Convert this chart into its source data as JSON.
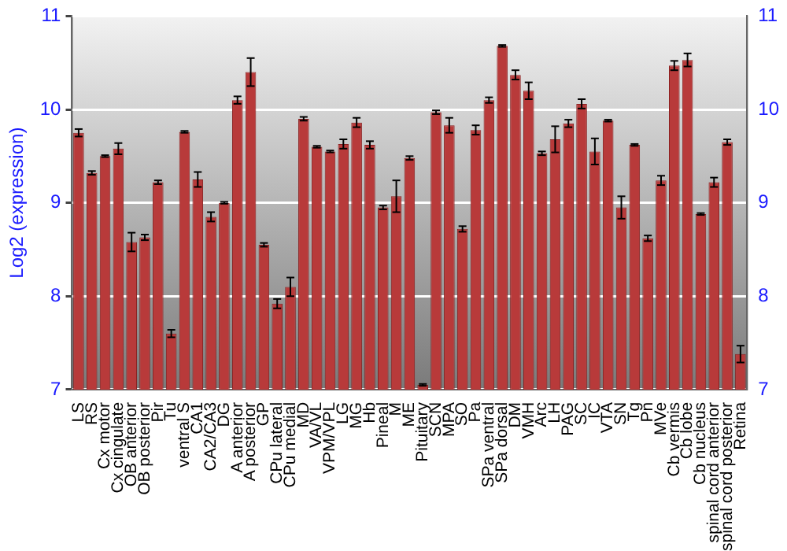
{
  "chart_data": {
    "type": "bar",
    "ylabel": "Log2 (expression)",
    "categories": [
      "LS",
      "RS",
      "Cx motor",
      "Cx cingulate",
      "OB anterior",
      "OB posterior",
      "Pir",
      "Tu",
      "ventral S",
      "CA1",
      "CA2/CA3",
      "DG",
      "A anterior",
      "A posterior",
      "GP",
      "CPu lateral",
      "CPu medial",
      "MD",
      "VA/VL",
      "VPM/VPL",
      "LG",
      "MG",
      "Hb",
      "Pineal",
      "M",
      "ME",
      "Pituitary",
      "SCN",
      "MPA",
      "SO",
      "Pa",
      "SPa ventral",
      "SPa dorsal",
      "DM",
      "VMH",
      "Arc",
      "LH",
      "PAG",
      "SC",
      "IC",
      "VTA",
      "SN",
      "Tg",
      "Pn",
      "MVe",
      "Cb vermis",
      "Cb lobe",
      "Cb nucleus",
      "spinal cord anterior",
      "spinal cord posterior",
      "Retina"
    ],
    "values": [
      9.75,
      9.32,
      9.5,
      9.58,
      8.58,
      8.63,
      9.22,
      7.6,
      9.76,
      9.25,
      8.85,
      9.0,
      10.1,
      10.4,
      8.55,
      7.92,
      8.1,
      9.9,
      9.6,
      9.55,
      9.63,
      9.86,
      9.62,
      8.95,
      9.07,
      9.48,
      7.05,
      9.97,
      9.83,
      8.72,
      9.78,
      10.1,
      10.68,
      10.37,
      10.2,
      9.53,
      9.68,
      9.85,
      10.06,
      9.55,
      9.88,
      8.95,
      9.62,
      8.62,
      9.24,
      10.47,
      10.53,
      8.88,
      9.22,
      9.65,
      7.38
    ],
    "errors": [
      0.04,
      0.02,
      0.01,
      0.06,
      0.1,
      0.03,
      0.02,
      0.04,
      0.01,
      0.08,
      0.05,
      0.01,
      0.04,
      0.15,
      0.02,
      0.05,
      0.1,
      0.02,
      0.01,
      0.01,
      0.05,
      0.05,
      0.04,
      0.02,
      0.17,
      0.02,
      0.01,
      0.02,
      0.08,
      0.03,
      0.05,
      0.03,
      0.01,
      0.05,
      0.09,
      0.02,
      0.14,
      0.04,
      0.05,
      0.14,
      0.01,
      0.12,
      0.01,
      0.03,
      0.05,
      0.05,
      0.07,
      0.01,
      0.05,
      0.03,
      0.09
    ],
    "color": "#b83a3a",
    "ylim": [
      7,
      11
    ],
    "yticks": [
      7,
      8,
      9,
      10,
      11
    ],
    "y2lim": [
      7,
      11
    ],
    "y2ticks": [
      7,
      8,
      9,
      10,
      11
    ],
    "grid": "y",
    "legend": false
  }
}
